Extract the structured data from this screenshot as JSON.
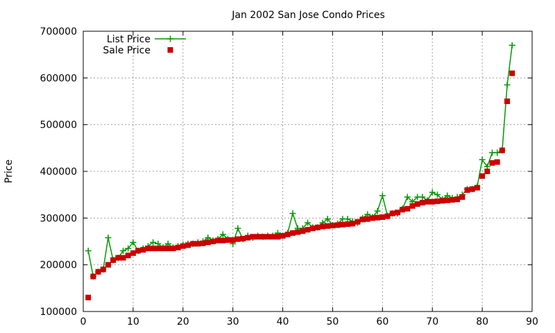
{
  "chart_data": {
    "type": "line",
    "title": "Jan 2002 San Jose Condo Prices",
    "xlabel": "",
    "ylabel": "Price",
    "xlim": [
      0,
      90
    ],
    "ylim": [
      100000,
      700000
    ],
    "x_ticks": [
      0,
      10,
      20,
      30,
      40,
      50,
      60,
      70,
      80,
      90
    ],
    "y_ticks": [
      100000,
      200000,
      300000,
      400000,
      500000,
      600000,
      700000
    ],
    "grid": true,
    "legend_position": "top-left",
    "series": [
      {
        "name": "List Price",
        "style": "lines-points",
        "marker": "plus",
        "color": "#009900",
        "x": [
          1,
          2,
          3,
          4,
          5,
          6,
          7,
          8,
          9,
          10,
          11,
          12,
          13,
          14,
          15,
          16,
          17,
          18,
          19,
          20,
          21,
          22,
          23,
          24,
          25,
          26,
          27,
          28,
          29,
          30,
          31,
          32,
          33,
          34,
          35,
          36,
          37,
          38,
          39,
          40,
          41,
          42,
          43,
          44,
          45,
          46,
          47,
          48,
          49,
          50,
          51,
          52,
          53,
          54,
          55,
          56,
          57,
          58,
          59,
          60,
          61,
          62,
          63,
          64,
          65,
          66,
          67,
          68,
          69,
          70,
          71,
          72,
          73,
          74,
          75,
          76,
          77,
          78,
          79,
          80,
          81,
          82,
          83,
          84,
          85,
          86
        ],
        "y": [
          230000,
          175000,
          185000,
          190000,
          258000,
          210000,
          215000,
          230000,
          235000,
          248000,
          230000,
          235000,
          240000,
          248000,
          245000,
          237000,
          245000,
          237000,
          240000,
          243000,
          245000,
          245000,
          248000,
          250000,
          258000,
          252000,
          255000,
          265000,
          255000,
          245000,
          278000,
          255000,
          262000,
          258000,
          262000,
          260000,
          262000,
          262000,
          268000,
          262000,
          268000,
          310000,
          278000,
          278000,
          290000,
          280000,
          280000,
          290000,
          298000,
          285000,
          288000,
          298000,
          298000,
          293000,
          290000,
          300000,
          308000,
          302000,
          315000,
          348000,
          305000,
          310000,
          310000,
          320000,
          345000,
          335000,
          345000,
          345000,
          338000,
          355000,
          350000,
          340000,
          348000,
          343000,
          345000,
          350000,
          362000,
          362000,
          368000,
          425000,
          410000,
          440000,
          440000,
          445000,
          585000,
          670000
        ]
      },
      {
        "name": "Sale Price",
        "style": "points",
        "marker": "square",
        "color": "#cc0000",
        "x": [
          1,
          2,
          3,
          4,
          5,
          6,
          7,
          8,
          9,
          10,
          11,
          12,
          13,
          14,
          15,
          16,
          17,
          18,
          19,
          20,
          21,
          22,
          23,
          24,
          25,
          26,
          27,
          28,
          29,
          30,
          31,
          32,
          33,
          34,
          35,
          36,
          37,
          38,
          39,
          40,
          41,
          42,
          43,
          44,
          45,
          46,
          47,
          48,
          49,
          50,
          51,
          52,
          53,
          54,
          55,
          56,
          57,
          58,
          59,
          60,
          61,
          62,
          63,
          64,
          65,
          66,
          67,
          68,
          69,
          70,
          71,
          72,
          73,
          74,
          75,
          76,
          77,
          78,
          79,
          80,
          81,
          82,
          83,
          84,
          85,
          86
        ],
        "y": [
          130000,
          175000,
          185000,
          190000,
          200000,
          210000,
          215000,
          215000,
          220000,
          225000,
          230000,
          232000,
          235000,
          235000,
          235000,
          235000,
          235000,
          235000,
          237000,
          240000,
          242000,
          245000,
          245000,
          246000,
          248000,
          250000,
          252000,
          252000,
          253000,
          253000,
          255000,
          256000,
          258000,
          260000,
          260000,
          260000,
          260000,
          260000,
          260000,
          262000,
          265000,
          268000,
          270000,
          272000,
          275000,
          278000,
          280000,
          282000,
          283000,
          284000,
          285000,
          286000,
          287000,
          288000,
          292000,
          297000,
          298000,
          300000,
          301000,
          302000,
          304000,
          310000,
          312000,
          318000,
          320000,
          326000,
          330000,
          333000,
          335000,
          335000,
          336000,
          337000,
          338000,
          339000,
          340000,
          345000,
          360000,
          362000,
          365000,
          390000,
          400000,
          418000,
          420000,
          445000,
          550000,
          610000
        ]
      }
    ]
  }
}
